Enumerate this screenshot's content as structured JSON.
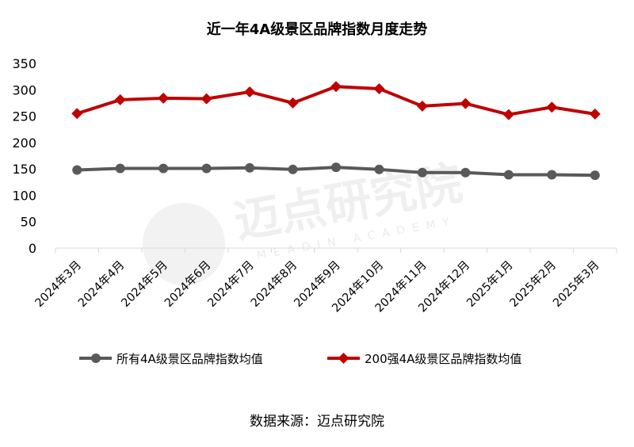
{
  "chart_data": {
    "type": "line",
    "title": "近一年4A级景区品牌指数月度走势",
    "categories": [
      "2024年3月",
      "2024年4月",
      "2024年5月",
      "2024年6月",
      "2024年7月",
      "2024年8月",
      "2024年9月",
      "2024年10月",
      "2024年11月",
      "2024年12月",
      "2025年1月",
      "2025年2月",
      "2025年3月"
    ],
    "series": [
      {
        "name": "所有4A级景区品牌指数均值",
        "color": "#595959",
        "values": [
          148,
          151,
          151,
          151,
          152,
          149,
          153,
          149,
          143,
          143,
          139,
          139,
          138
        ]
      },
      {
        "name": "200强4A级景区品牌指数均值",
        "color": "#c00000",
        "values": [
          255,
          281,
          284,
          283,
          296,
          275,
          306,
          302,
          269,
          274,
          253,
          267,
          254
        ]
      }
    ],
    "ylim": [
      0,
      350
    ],
    "yticks": [
      "350",
      "300",
      "250",
      "200",
      "150",
      "100",
      "50",
      "0"
    ],
    "grid": false,
    "legend": "bottom"
  },
  "source": "数据来源：迈点研究院",
  "watermark": {
    "name": "迈点研究院",
    "subtitle": "MEADIN ACADEMY"
  }
}
